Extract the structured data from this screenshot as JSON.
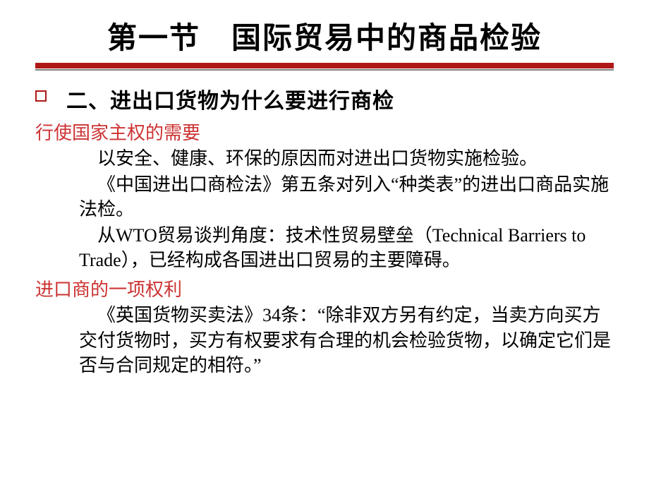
{
  "title": "第一节　国际贸易中的商品检验",
  "heading": "二、进出口货物为什么要进行商检",
  "sub1": "行使国家主权的需要",
  "p1": "以安全、健康、环保的原因而对进出口货物实施检验。",
  "p2": "《中国进出口商检法》第五条对列入“种类表”的进出口商品实施法检。",
  "p3": "从WTO贸易谈判角度：技术性贸易壁垒（Technical Barriers to Trade），已经构成各国进出口贸易的主要障碍。",
  "sub2": "进口商的一项权利",
  "p4": "《英国货物买卖法》34条：“除非双方另有约定，当卖方向买方交付货物时，买方有权要求有合理的机会检验货物，以确定它们是否与合同规定的相符。”",
  "colors": {
    "title": "#000000",
    "underline": "#b01818",
    "bullet_border": "#b01818",
    "subhead": "#cc3333",
    "body": "#000000",
    "bg": "#ffffff"
  },
  "fonts": {
    "title_size": 42,
    "heading_size": 30,
    "subhead_size": 26,
    "body_size": 26
  }
}
